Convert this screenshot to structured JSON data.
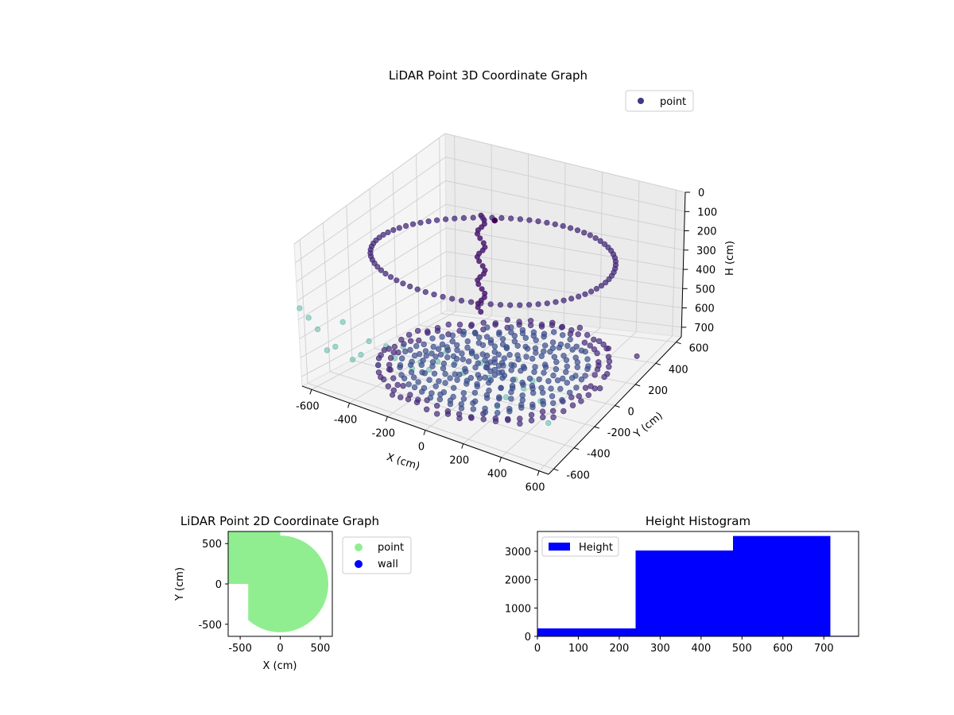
{
  "chart_data": [
    {
      "type": "scatter",
      "title": "LiDAR Point 3D Coordinate Graph",
      "xlabel": "X (cm)",
      "ylabel": "Y (cm)",
      "zlabel": "H (cm)",
      "xlim": [
        -650,
        650
      ],
      "ylim": [
        -650,
        650
      ],
      "zlim": [
        0,
        750
      ],
      "z_inverted": true,
      "xticks": [
        -600,
        -400,
        -200,
        0,
        200,
        400,
        600
      ],
      "yticks": [
        -600,
        -400,
        -200,
        0,
        200,
        400,
        600
      ],
      "zticks": [
        0,
        100,
        200,
        300,
        400,
        500,
        600,
        700
      ],
      "legend": {
        "location": "top-right",
        "entries": [
          "point"
        ]
      },
      "colors": {
        "dense": "#3b4d8a",
        "ring": "#452a78",
        "outer": "#5fb8a8",
        "top": "#440154"
      },
      "series": [
        {
          "name": "point",
          "floor_disc": {
            "center": [
              0,
              0
            ],
            "radius_range": [
              40,
              540
            ],
            "height_range": [
              690,
              720
            ]
          },
          "upper_ring": {
            "center": [
              0,
              0
            ],
            "radius": 560,
            "height_range": [
              120,
              250
            ]
          },
          "outer_wall": {
            "x_range": [
              -640,
              640
            ],
            "y": -650,
            "height_range": [
              300,
              520
            ]
          },
          "column": {
            "x": -100,
            "y": 50,
            "height_range": [
              20,
              480
            ]
          },
          "top_point": [
            0,
            0,
            0
          ],
          "stray_points": [
            [
              -200,
              -600,
              660
            ],
            [
              500,
              200,
              600
            ],
            [
              600,
              300,
              670
            ]
          ]
        }
      ]
    },
    {
      "type": "scatter",
      "title": "LiDAR Point 2D Coordinate Graph",
      "xlabel": "X (cm)",
      "ylabel": "Y (cm)",
      "xlim": [
        -650,
        650
      ],
      "ylim": [
        -650,
        650
      ],
      "xticks": [
        -500,
        0,
        500
      ],
      "yticks": [
        -500,
        0,
        500
      ],
      "legend": {
        "location": "outside-right",
        "entries": [
          "point",
          "wall"
        ]
      },
      "series": [
        {
          "name": "point",
          "color": "#90ee90",
          "region": {
            "center": [
              0,
              0
            ],
            "radius": 600,
            "notch": {
              "x": [
                -650,
                -400
              ],
              "y": [
                -650,
                0
              ]
            }
          }
        },
        {
          "name": "wall",
          "color": "#0000ff",
          "points": []
        }
      ]
    },
    {
      "type": "bar",
      "title": "Height Histogram",
      "legend": {
        "location": "top-left",
        "entries": [
          "Height"
        ]
      },
      "color": "#0000ff",
      "xlim": [
        0,
        785
      ],
      "ylim": [
        0,
        3700
      ],
      "xticks": [
        0,
        100,
        200,
        300,
        400,
        500,
        600,
        700
      ],
      "yticks": [
        0,
        1000,
        2000,
        3000
      ],
      "bins": [
        {
          "x0": 0,
          "x1": 240,
          "count": 280
        },
        {
          "x0": 240,
          "x1": 478,
          "count": 3030
        },
        {
          "x0": 478,
          "x1": 716,
          "count": 3540
        },
        {
          "x0": 716,
          "x1": 785,
          "count": 20
        }
      ]
    }
  ]
}
